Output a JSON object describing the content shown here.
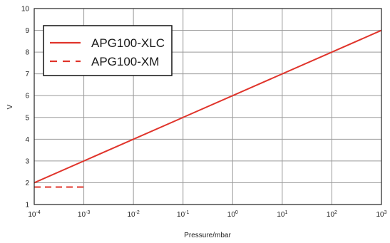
{
  "chart_data": {
    "type": "line",
    "title": "",
    "xlabel": "Pressure/mbar",
    "ylabel": "V",
    "x_scale": "log",
    "xlim": [
      0.0001,
      1000
    ],
    "ylim": [
      1,
      10
    ],
    "grid": true,
    "legend_position": "top-left",
    "x_ticks": [
      {
        "value": 0.0001,
        "base": "10",
        "exp": "-4"
      },
      {
        "value": 0.001,
        "base": "10",
        "exp": "-3"
      },
      {
        "value": 0.01,
        "base": "10",
        "exp": "-2"
      },
      {
        "value": 0.1,
        "base": "10",
        "exp": "-1"
      },
      {
        "value": 1,
        "base": "10",
        "exp": "0"
      },
      {
        "value": 10,
        "base": "10",
        "exp": "1"
      },
      {
        "value": 100,
        "base": "10",
        "exp": "2"
      },
      {
        "value": 1000,
        "base": "10",
        "exp": "3"
      }
    ],
    "y_ticks": [
      "1",
      "2",
      "3",
      "4",
      "5",
      "6",
      "7",
      "8",
      "9",
      "10"
    ],
    "series": [
      {
        "name": "APG100-XLC",
        "color": "#e0342b",
        "dash": "solid",
        "x": [
          0.0001,
          1000
        ],
        "y": [
          2,
          9
        ]
      },
      {
        "name": "APG100-XM",
        "color": "#e0342b",
        "dash": "dashed",
        "x": [
          0.0001,
          0.001
        ],
        "y": [
          1.8,
          1.8
        ]
      }
    ]
  }
}
